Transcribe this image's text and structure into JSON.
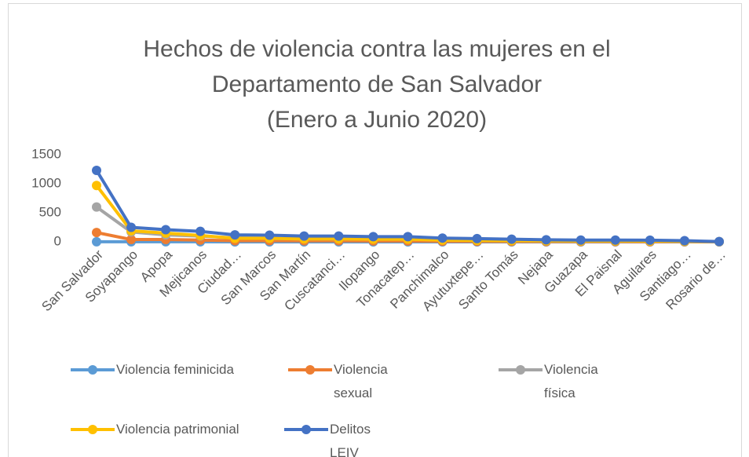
{
  "chart_data": {
    "type": "line",
    "title": [
      "Hechos de violencia contra las mujeres en el",
      "Departamento de San Salvador",
      "(Enero a Junio 2020)"
    ],
    "categories": [
      "San Salvador",
      "Soyapango",
      "Apopa",
      "Mejicanos",
      "Ciudad…",
      "San Marcos",
      "San Martín",
      "Cuscatanci…",
      "Ilopango",
      "Tonacatep…",
      "Panchimalco",
      "Ayutuxtepe…",
      "Santo Tomás",
      "Nejapa",
      "Guazapa",
      "El Paisnal",
      "Aguilares",
      "Santiago…",
      "Rosario de…"
    ],
    "series": [
      {
        "name": "Violencia feminicida",
        "color": "#5b9bd5",
        "values": [
          2,
          1,
          1,
          1,
          0,
          0,
          0,
          0,
          0,
          0,
          0,
          0,
          0,
          0,
          0,
          0,
          0,
          0,
          0
        ]
      },
      {
        "name": "Violencia sexual",
        "color": "#ed7d31",
        "values": [
          160,
          40,
          40,
          30,
          20,
          20,
          18,
          18,
          15,
          15,
          10,
          8,
          7,
          5,
          5,
          5,
          4,
          3,
          1
        ]
      },
      {
        "name": "Violencia física",
        "color": "#a5a5a5",
        "values": [
          600,
          170,
          120,
          100,
          70,
          60,
          50,
          50,
          45,
          45,
          30,
          25,
          20,
          17,
          15,
          15,
          13,
          10,
          3
        ]
      },
      {
        "name": "Violencia patrimonial",
        "color": "#ffc000",
        "values": [
          970,
          190,
          150,
          110,
          60,
          60,
          50,
          50,
          45,
          45,
          30,
          25,
          20,
          18,
          15,
          15,
          14,
          10,
          3
        ]
      },
      {
        "name": "Delitos LEIV",
        "color": "#4472c4",
        "values": [
          1230,
          250,
          210,
          180,
          120,
          115,
          100,
          100,
          90,
          90,
          65,
          55,
          45,
          35,
          30,
          30,
          28,
          20,
          5
        ]
      }
    ],
    "ylim": [
      0,
      1500
    ],
    "yticks": [
      0,
      500,
      1000,
      1500
    ],
    "grid": false
  }
}
